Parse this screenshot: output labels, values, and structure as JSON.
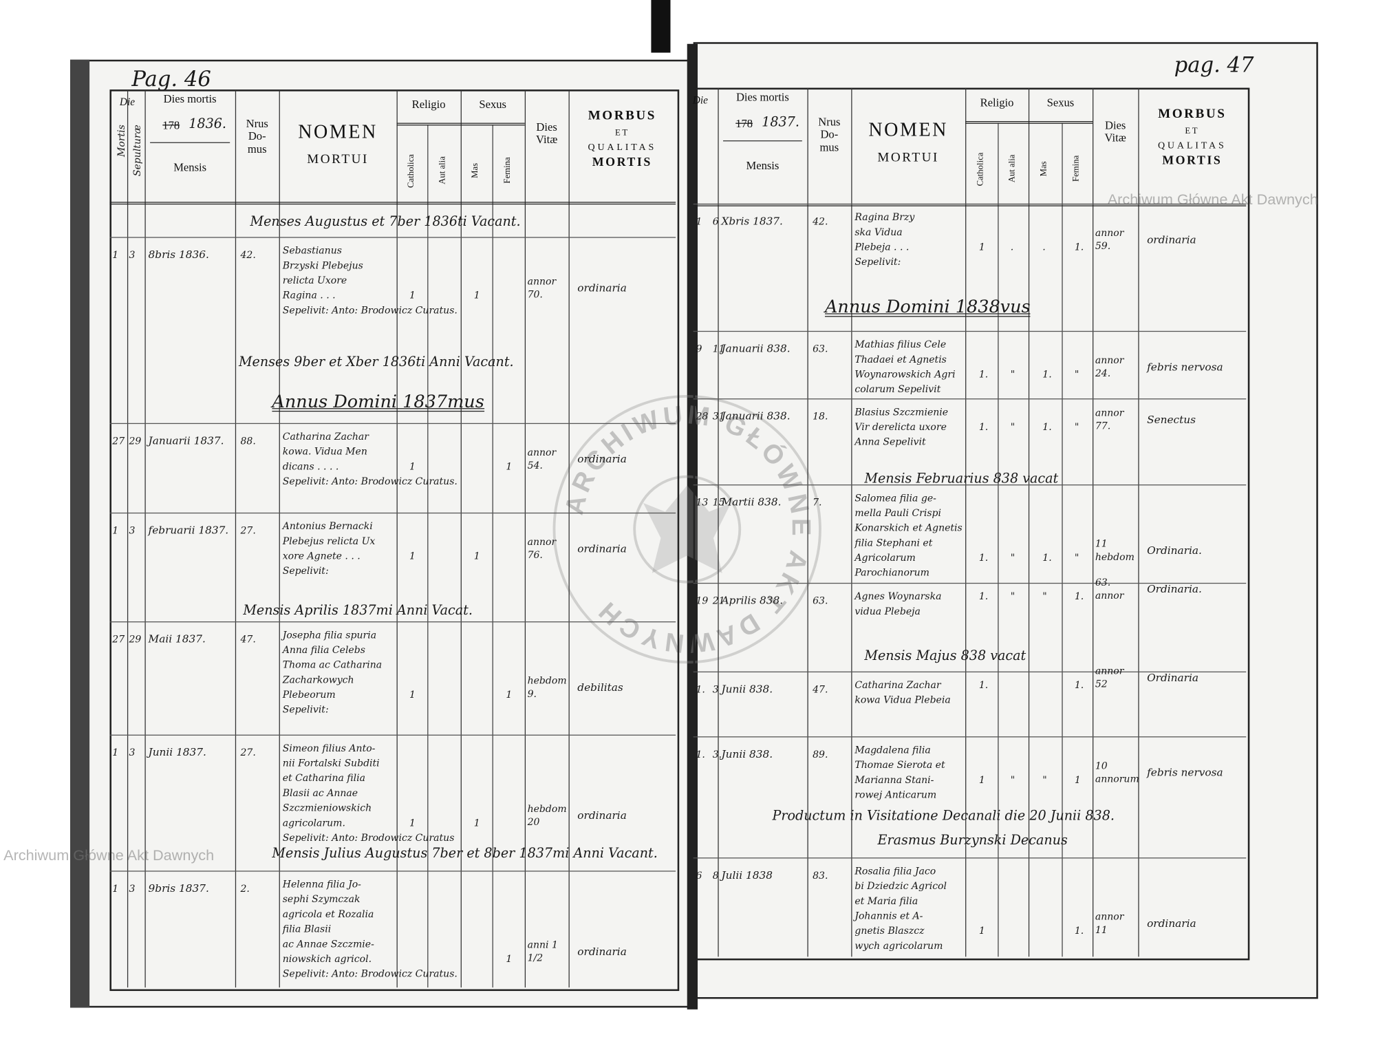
{
  "left_page": {
    "page_number": "Pag. 46",
    "headers": {
      "die": "Die",
      "mortis": "Mortis",
      "sepulturae": "Sepulturæ",
      "dies_mortis": "Dies mortis",
      "year_struck": "178",
      "year": "1836.",
      "mensis": "Mensis",
      "nrus_domus": "Nrus Do- mus",
      "nomen": "NOMEN",
      "mortui": "MORTUI",
      "religio": "Religio",
      "catholica": "Catholica",
      "aut_alia": "Aut alia",
      "sexus": "Sexus",
      "mas": "Mas",
      "femina": "Femina",
      "dies_vitae": "Dies Vitæ",
      "morbus": "MORBUS",
      "et": "ET",
      "qualitas": "QUALITAS",
      "mortis_word": "MORTIS"
    },
    "notes": [
      "Menses Augustus et 7ber 1836ti Vacant.",
      "Menses 9ber et Xber 1836ti Anni Vacant.",
      "Annus Domini 1837mus",
      "Mensis Aprilis 1837mi Anni Vacat.",
      "Mensis Julius Augustus 7ber et 8ber 1837mi Anni Vacant."
    ],
    "entries": [
      {
        "mortis": "1",
        "sep": "3",
        "date": "8bris 1836.",
        "domus": "42.",
        "nomen": [
          "Sebastianus",
          "Brzyski Plebejus",
          "relicta Uxore",
          "Ragina . . .",
          "Sepelivit: Anto: Brodowicz Curatus."
        ],
        "cath": "1",
        "aut": "",
        "mas": "1",
        "fem": "",
        "vitae": "annor 70.",
        "morbus": "ordinaria"
      },
      {
        "mortis": "27",
        "sep": "29",
        "date": "Januarii 1837.",
        "domus": "88.",
        "nomen": [
          "Catharina Zachar",
          "kowa. Vidua Men",
          "dicans . . . .",
          "Sepelivit: Anto: Brodowicz Curatus."
        ],
        "cath": "1",
        "aut": "",
        "mas": "",
        "fem": "1",
        "vitae": "annor 54.",
        "morbus": "ordinaria"
      },
      {
        "mortis": "1",
        "sep": "3",
        "date": "februarii 1837.",
        "domus": "27.",
        "nomen": [
          "Antonius Bernacki",
          "Plebejus relicta Ux",
          "xore Agnete . . .",
          "Sepelivit:"
        ],
        "cath": "1",
        "aut": "",
        "mas": "1",
        "fem": "",
        "vitae": "annor 76.",
        "morbus": "ordinaria"
      },
      {
        "mortis": "27",
        "sep": "29",
        "date": "Maii 1837.",
        "domus": "47.",
        "nomen": [
          "Josepha filia spuria",
          "Anna filia Celebs",
          "Thoma ac Catharina",
          "Zacharkowych",
          "Plebeorum",
          "Sepelivit:"
        ],
        "cath": "1",
        "aut": "",
        "mas": "",
        "fem": "1",
        "vitae": "hebdom 9.",
        "morbus": "debilitas"
      },
      {
        "mortis": "1",
        "sep": "3",
        "date": "Junii 1837.",
        "domus": "27.",
        "nomen": [
          "Simeon filius Anto-",
          "nii Fortalski Subditi",
          "et Catharina filia",
          "Blasii ac Annae",
          "Szczmieniowskich",
          "agricolarum.",
          "Sepelivit: Anto: Brodowicz Curatus"
        ],
        "cath": "1",
        "aut": "",
        "mas": "1",
        "fem": "",
        "vitae": "hebdom 20",
        "morbus": "ordinaria"
      },
      {
        "mortis": "1",
        "sep": "3",
        "date": "9bris 1837.",
        "domus": "2.",
        "nomen": [
          "Helenna filia Jo-",
          "sephi Szymczak",
          "agricola et Rozalia",
          "filia Blasii",
          "ac Annae Szczmie-",
          "niowskich agricol.",
          "Sepelivit: Anto: Brodowicz Curatus."
        ],
        "cath": "",
        "aut": "",
        "mas": "",
        "fem": "1",
        "vitae": "anni 1 1/2",
        "morbus": "ordinaria"
      }
    ]
  },
  "right_page": {
    "page_number": "pag. 47",
    "headers": {
      "die": "Die",
      "dies_mortis": "Dies mortis",
      "year_struck": "178",
      "year": "1837.",
      "mensis": "Mensis",
      "nrus_domus": "Nrus Do- mus",
      "nomen": "NOMEN",
      "mortui": "MORTUI",
      "religio": "Religio",
      "catholica": "Catholica",
      "aut_alia": "Aut alia",
      "sexus": "Sexus",
      "mas": "Mas",
      "femina": "Femina",
      "dies_vitae": "Dies Vitæ",
      "morbus": "MORBUS",
      "et": "ET",
      "qualitas": "QUALITAS",
      "mortis_word": "MORTIS"
    },
    "notes": [
      "Annus Domini 1838vus",
      "Mensis Februarius 838 vacat",
      "Mensis Majus 838 vacat",
      "Productum in Visitatione Decanali die 20 Junii 838.",
      "Erasmus Burzynski Decanus"
    ],
    "entries": [
      {
        "mortis": "1",
        "sep": "6",
        "date": "Xbris 1837.",
        "domus": "42.",
        "nomen": [
          "Ragina Brzy",
          "ska Vidua",
          "Plebeja . . .",
          "Sepelivit:"
        ],
        "cath": "1",
        "aut": ".",
        "mas": ".",
        "fem": "1.",
        "vitae": "annor 59.",
        "morbus": "ordinaria"
      },
      {
        "mortis": "9",
        "sep": "11",
        "date": "Januarii 838.",
        "domus": "63.",
        "nomen": [
          "Mathias filius Cele",
          "Thadaei et Agnetis",
          "Woynarowskich Agri",
          "colarum Sepelivit"
        ],
        "cath": "1.",
        "aut": "\"",
        "mas": "1.",
        "fem": "\"",
        "vitae": "annor 24.",
        "morbus": "febris nervosa"
      },
      {
        "mortis": "28",
        "sep": "31",
        "date": "Januarii 838.",
        "domus": "18.",
        "nomen": [
          "Blasius Szczmienie",
          "Vir derelicta uxore",
          "Anna Sepelivit"
        ],
        "cath": "1.",
        "aut": "\"",
        "mas": "1.",
        "fem": "\"",
        "vitae": "annor 77.",
        "morbus": "Senectus"
      },
      {
        "mortis": "13",
        "sep": "15",
        "date": "Martii 838.",
        "domus": "7.",
        "nomen": [
          "Salomea filia ge-",
          "mella Pauli Crispi",
          "Konarskich et Agnetis",
          "filia Stephani et",
          "Agricolarum",
          "Parochianorum"
        ],
        "cath": "1.",
        "aut": "\"",
        "mas": "1.",
        "fem": "\"",
        "vitae": "11 hebdom",
        "morbus": "Ordinaria."
      },
      {
        "mortis": "19",
        "sep": "21",
        "date": "Aprilis 838.",
        "domus": "63.",
        "nomen": [
          "Agnes Woynarska",
          "vidua Plebeja"
        ],
        "cath": "1.",
        "aut": "\"",
        "mas": "\"",
        "fem": "1.",
        "vitae": "63. annor",
        "morbus": "Ordinaria."
      },
      {
        "mortis": "1.",
        "sep": "3",
        "date": "Junii 838.",
        "domus": "47.",
        "nomen": [
          "Catharina Zachar",
          "kowa Vidua Plebeia"
        ],
        "cath": "1.",
        "aut": "",
        "mas": "",
        "fem": "1.",
        "vitae": "annor 52",
        "morbus": "Ordinaria"
      },
      {
        "mortis": "1.",
        "sep": "3.",
        "date": "Junii 838.",
        "domus": "89.",
        "nomen": [
          "Magdalena filia",
          "Thomae Sierota et",
          "Marianna Stani-",
          "rowej Anticarum"
        ],
        "cath": "1",
        "aut": "\"",
        "mas": "\"",
        "fem": "1",
        "vitae": "10 annorum",
        "morbus": "febris nervosa"
      },
      {
        "mortis": "6",
        "sep": "8",
        "date": "Julii 1838",
        "domus": "83.",
        "nomen": [
          "Rosalia filia Jaco",
          "bi Dziedzic Agricol",
          "et Maria filia",
          "Johannis et A-",
          "gnetis Blaszcz",
          "wych agricolarum"
        ],
        "cath": "1",
        "aut": "",
        "mas": "",
        "fem": "1.",
        "vitae": "annor 11",
        "morbus": "ordinaria"
      }
    ]
  },
  "watermark": {
    "text": "Archiwum Główne Akt Dawnych",
    "stamp_text": "ARCHIWUM GŁÓWNE AKT DAWNYCH"
  },
  "colors": {
    "paper": "#f4f4f2",
    "ink": "#1a1a1a",
    "background": "#ffffff"
  }
}
